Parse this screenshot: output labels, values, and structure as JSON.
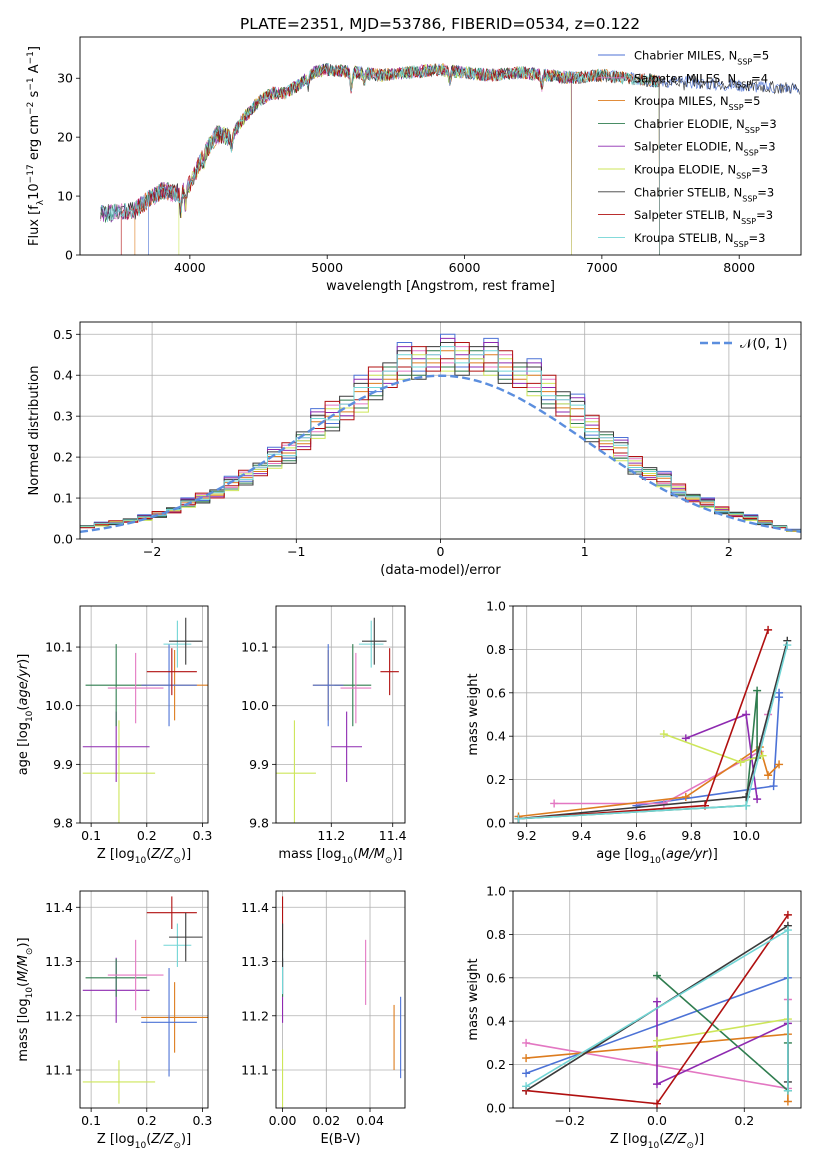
{
  "figure_title": "PLATE=2351, MJD=53786, FIBERID=0534, z=0.122",
  "colors": {
    "Chabrier MILES": "#4c72d6",
    "Salpeter MILES": "#e377c2",
    "Kroupa MILES": "#dd7c1e",
    "Chabrier ELODIE": "#2f7d4f",
    "Salpeter ELODIE": "#8e2ab0",
    "Kroupa ELODIE": "#cde65a",
    "Chabrier STELIB": "#3a3a3a",
    "Salpeter STELIB": "#b01010",
    "Kroupa STELIB": "#72d5d5",
    "gaussian": "#5b8ede"
  },
  "chart_data": [
    {
      "id": "spectrum",
      "type": "line",
      "xlabel": "wavelength [Angstrom, rest frame]",
      "ylabel": "Flux [f_λ 10^-17 erg cm^-2 s^-1 A^-1]",
      "xlim": [
        3200,
        8450
      ],
      "ylim": [
        0,
        37
      ],
      "xticks": [
        4000,
        5000,
        6000,
        7000,
        8000
      ],
      "yticks": [
        0,
        10,
        20,
        30
      ],
      "grid": false,
      "legend_position": "top-right",
      "legend": [
        {
          "label": "Chabrier MILES, N_SSP=5",
          "main": "Chabrier MILES, N",
          "sub": "SSP",
          "tail": "=5"
        },
        {
          "label": "Salpeter MILES, N_SSP=4",
          "main": "Salpeter MILES, N",
          "sub": "SSP",
          "tail": "=4"
        },
        {
          "label": "Kroupa MILES, N_SSP=5",
          "main": "Kroupa MILES, N",
          "sub": "SSP",
          "tail": "=5"
        },
        {
          "label": "Chabrier ELODIE, N_SSP=3",
          "main": "Chabrier ELODIE, N",
          "sub": "SSP",
          "tail": "=3"
        },
        {
          "label": "Salpeter ELODIE, N_SSP=3",
          "main": "Salpeter ELODIE, N",
          "sub": "SSP",
          "tail": "=3"
        },
        {
          "label": "Kroupa ELODIE, N_SSP=3",
          "main": "Kroupa ELODIE, N",
          "sub": "SSP",
          "tail": "=3"
        },
        {
          "label": "Chabrier STELIB, N_SSP=3",
          "main": "Chabrier STELIB, N",
          "sub": "SSP",
          "tail": "=3"
        },
        {
          "label": "Salpeter STELIB, N_SSP=3",
          "main": "Salpeter STELIB, N",
          "sub": "SSP",
          "tail": "=3"
        },
        {
          "label": "Kroupa STELIB, N_SSP=3",
          "main": "Kroupa STELIB, N",
          "sub": "SSP",
          "tail": "=3"
        }
      ],
      "continuum": {
        "x": [
          3350,
          3600,
          3700,
          3800,
          3900,
          4000,
          4100,
          4200,
          4300,
          4400,
          4500,
          4600,
          4700,
          4800,
          4900,
          5000,
          5200,
          5400,
          5600,
          5800,
          6000,
          6200,
          6400,
          6600,
          6800,
          7000,
          7200,
          7400,
          7600,
          7800,
          8000,
          8200,
          8440
        ],
        "y": [
          7.0,
          7.5,
          9.5,
          11.0,
          10.5,
          12.0,
          17.0,
          20.5,
          20.0,
          23.5,
          26.0,
          27.5,
          27.5,
          29.0,
          31.0,
          31.5,
          31.0,
          30.5,
          31.0,
          31.5,
          31.0,
          30.5,
          31.0,
          30.5,
          30.0,
          30.5,
          30.0,
          29.5,
          29.5,
          29.0,
          28.8,
          28.5,
          28.3
        ]
      },
      "series": [
        {
          "name": "Chabrier MILES",
          "range": [
            3700,
            8440
          ]
        },
        {
          "name": "Salpeter MILES",
          "range": [
            3350,
            6780
          ]
        },
        {
          "name": "Kroupa MILES",
          "range": [
            3600,
            7420
          ]
        },
        {
          "name": "Chabrier ELODIE",
          "range": [
            3350,
            7420
          ]
        },
        {
          "name": "Salpeter ELODIE",
          "range": [
            3350,
            6780
          ]
        },
        {
          "name": "Kroupa ELODIE",
          "range": [
            3920,
            6780
          ]
        },
        {
          "name": "Chabrier STELIB",
          "range": [
            3350,
            8440
          ]
        },
        {
          "name": "Salpeter STELIB",
          "range": [
            3500,
            7420
          ]
        },
        {
          "name": "Kroupa STELIB",
          "range": [
            3350,
            7420
          ]
        }
      ]
    },
    {
      "id": "residuals",
      "type": "histogram",
      "xlabel": "(data-model)/error",
      "ylabel": "Normed distribution",
      "xlim": [
        -2.5,
        2.5
      ],
      "ylim": [
        0,
        0.53
      ],
      "xticks": [
        -2,
        -1,
        0,
        1,
        2
      ],
      "yticks": [
        0.0,
        0.1,
        0.2,
        0.3,
        0.4,
        0.5
      ],
      "grid": true,
      "legend_position": "top-right",
      "legend": [
        {
          "label": "𝒩(0, 1)"
        }
      ],
      "bin_width": 0.1,
      "bin_start": -2.5,
      "base": [
        0.03,
        0.035,
        0.04,
        0.045,
        0.05,
        0.06,
        0.07,
        0.085,
        0.1,
        0.11,
        0.13,
        0.15,
        0.17,
        0.19,
        0.21,
        0.24,
        0.27,
        0.3,
        0.32,
        0.34,
        0.38,
        0.4,
        0.42,
        0.43,
        0.44,
        0.44,
        0.44,
        0.44,
        0.43,
        0.42,
        0.4,
        0.38,
        0.36,
        0.33,
        0.3,
        0.27,
        0.24,
        0.21,
        0.18,
        0.16,
        0.14,
        0.12,
        0.1,
        0.085,
        0.07,
        0.06,
        0.05,
        0.04,
        0.03,
        0.02
      ],
      "series_offsets": {
        "Chabrier MILES": [
          0.0,
          0.06,
          -0.02
        ],
        "Salpeter MILES": [
          0.01,
          -0.01,
          0.03
        ],
        "Kroupa MILES": [
          -0.01,
          0.02,
          0.0
        ],
        "Chabrier ELODIE": [
          0.02,
          -0.02,
          -0.03
        ],
        "Salpeter ELODIE": [
          -0.02,
          0.05,
          0.01
        ],
        "Kroupa ELODIE": [
          0.0,
          -0.03,
          0.02
        ],
        "Chabrier STELIB": [
          0.03,
          0.04,
          -0.04
        ],
        "Salpeter STELIB": [
          -0.03,
          0.0,
          0.04
        ],
        "Kroupa STELIB": [
          0.01,
          0.03,
          -0.01
        ]
      },
      "gaussian": {
        "mu": 0,
        "sigma": 1
      }
    },
    {
      "id": "age_vs_Z",
      "type": "errorbar",
      "xlabel": "Z [log10(Z/Z⊙)]",
      "ylabel": "age [log10(age/yr)]",
      "xlim": [
        0.08,
        0.31
      ],
      "ylim": [
        9.8,
        10.17
      ],
      "xticks": [
        0.1,
        0.2,
        0.3
      ],
      "yticks": [
        9.8,
        9.9,
        10.0,
        10.1
      ],
      "grid": true,
      "points": [
        {
          "series": "Kroupa ELODIE",
          "x": 0.15,
          "y": 9.885,
          "xerr": 0.065,
          "yerr": 0.09
        },
        {
          "series": "Salpeter ELODIE",
          "x": 0.145,
          "y": 9.93,
          "xerr": 0.06,
          "yerr": 0.06
        },
        {
          "series": "Chabrier ELODIE",
          "x": 0.145,
          "y": 10.035,
          "xerr": 0.055,
          "yerr": 0.07
        },
        {
          "series": "Salpeter MILES",
          "x": 0.18,
          "y": 10.03,
          "xerr": 0.05,
          "yerr": 0.06
        },
        {
          "series": "Kroupa MILES",
          "x": 0.25,
          "y": 10.035,
          "xerr": 0.06,
          "yerr": 0.06
        },
        {
          "series": "Chabrier MILES",
          "x": 0.24,
          "y": 10.035,
          "xerr": 0.05,
          "yerr": 0.07
        },
        {
          "series": "Salpeter STELIB",
          "x": 0.245,
          "y": 10.058,
          "xerr": 0.045,
          "yerr": 0.04
        },
        {
          "series": "Kroupa STELIB",
          "x": 0.255,
          "y": 10.105,
          "xerr": 0.025,
          "yerr": 0.04
        },
        {
          "series": "Chabrier STELIB",
          "x": 0.27,
          "y": 10.11,
          "xerr": 0.03,
          "yerr": 0.04
        }
      ]
    },
    {
      "id": "age_vs_mass",
      "type": "errorbar",
      "xlabel": "mass [log10(M/M⊙)]",
      "ylabel": "",
      "xlim": [
        11.02,
        11.44
      ],
      "ylim": [
        9.8,
        10.17
      ],
      "xticks": [
        11.2,
        11.4
      ],
      "yticks": [
        9.8,
        9.9,
        10.0,
        10.1
      ],
      "grid": true,
      "points": [
        {
          "series": "Kroupa ELODIE",
          "x": 11.08,
          "y": 9.885,
          "xerr": 0.07,
          "yerr": 0.09
        },
        {
          "series": "Salpeter ELODIE",
          "x": 11.25,
          "y": 9.93,
          "xerr": 0.05,
          "yerr": 0.06
        },
        {
          "series": "Chabrier ELODIE",
          "x": 11.27,
          "y": 10.035,
          "xerr": 0.06,
          "yerr": 0.07
        },
        {
          "series": "Salpeter MILES",
          "x": 11.28,
          "y": 10.03,
          "xerr": 0.05,
          "yerr": 0.06
        },
        {
          "series": "Kroupa MILES",
          "x": 11.19,
          "y": 10.035,
          "xerr": 0.05,
          "yerr": 0.06
        },
        {
          "series": "Chabrier MILES",
          "x": 11.19,
          "y": 10.035,
          "xerr": 0.05,
          "yerr": 0.07
        },
        {
          "series": "Salpeter STELIB",
          "x": 11.39,
          "y": 10.058,
          "xerr": 0.03,
          "yerr": 0.04
        },
        {
          "series": "Kroupa STELIB",
          "x": 11.33,
          "y": 10.105,
          "xerr": 0.04,
          "yerr": 0.04
        },
        {
          "series": "Chabrier STELIB",
          "x": 11.34,
          "y": 10.11,
          "xerr": 0.04,
          "yerr": 0.04
        }
      ]
    },
    {
      "id": "mass_weight_vs_age",
      "type": "line",
      "xlabel": "age [log10(age/yr)]",
      "ylabel": "mass weight",
      "xlim": [
        9.15,
        10.2
      ],
      "ylim": [
        0.0,
        1.0
      ],
      "xticks": [
        9.2,
        9.4,
        9.6,
        9.8,
        10.0
      ],
      "yticks": [
        0.0,
        0.2,
        0.4,
        0.6,
        0.8,
        1.0
      ],
      "grid": true,
      "series": [
        {
          "name": "Chabrier MILES",
          "x": [
            9.6,
            10.1,
            10.12,
            10.12
          ],
          "y": [
            0.08,
            0.17,
            0.58,
            0.6
          ]
        },
        {
          "name": "Salpeter MILES",
          "x": [
            9.3,
            9.7,
            10.05,
            10.08
          ],
          "y": [
            0.09,
            0.09,
            0.33,
            0.5
          ]
        },
        {
          "name": "Kroupa MILES",
          "x": [
            9.17,
            9.78,
            10.05,
            10.08,
            10.12
          ],
          "y": [
            0.03,
            0.12,
            0.35,
            0.22,
            0.27
          ]
        },
        {
          "name": "Chabrier ELODIE",
          "x": [
            9.17,
            10.0,
            10.04,
            10.04
          ],
          "y": [
            0.02,
            0.08,
            0.61,
            0.3
          ]
        },
        {
          "name": "Salpeter ELODIE",
          "x": [
            9.78,
            10.0,
            10.04
          ],
          "y": [
            0.39,
            0.5,
            0.11
          ]
        },
        {
          "name": "Kroupa ELODIE",
          "x": [
            9.7,
            9.98,
            10.06
          ],
          "y": [
            0.41,
            0.28,
            0.31
          ]
        },
        {
          "name": "Chabrier STELIB",
          "x": [
            9.17,
            10.0,
            10.15
          ],
          "y": [
            0.02,
            0.12,
            0.84
          ]
        },
        {
          "name": "Salpeter STELIB",
          "x": [
            9.17,
            9.85,
            10.08
          ],
          "y": [
            0.02,
            0.08,
            0.89
          ]
        },
        {
          "name": "Kroupa STELIB",
          "x": [
            9.17,
            10.0,
            10.15
          ],
          "y": [
            0.02,
            0.08,
            0.82
          ]
        }
      ]
    },
    {
      "id": "mass_vs_Z",
      "type": "errorbar",
      "xlabel": "Z [log10(Z/Z⊙)]",
      "ylabel": "mass [log10(M/M⊙)]",
      "xlim": [
        0.08,
        0.31
      ],
      "ylim": [
        11.03,
        11.43
      ],
      "xticks": [
        0.1,
        0.2,
        0.3
      ],
      "yticks": [
        11.1,
        11.2,
        11.3,
        11.4
      ],
      "grid": true,
      "points": [
        {
          "series": "Kroupa ELODIE",
          "x": 0.15,
          "y": 11.078,
          "xerr": 0.065,
          "yerr": 0.04
        },
        {
          "series": "Salpeter ELODIE",
          "x": 0.145,
          "y": 11.247,
          "xerr": 0.06,
          "yerr": 0.06
        },
        {
          "series": "Chabrier ELODIE",
          "x": 0.145,
          "y": 11.27,
          "xerr": 0.055,
          "yerr": 0.035
        },
        {
          "series": "Salpeter MILES",
          "x": 0.18,
          "y": 11.275,
          "xerr": 0.05,
          "yerr": 0.065
        },
        {
          "series": "Kroupa MILES",
          "x": 0.25,
          "y": 11.197,
          "xerr": 0.06,
          "yerr": 0.065
        },
        {
          "series": "Chabrier MILES",
          "x": 0.24,
          "y": 11.188,
          "xerr": 0.05,
          "yerr": 0.1
        },
        {
          "series": "Salpeter STELIB",
          "x": 0.245,
          "y": 11.39,
          "xerr": 0.045,
          "yerr": 0.03
        },
        {
          "series": "Kroupa STELIB",
          "x": 0.255,
          "y": 11.33,
          "xerr": 0.025,
          "yerr": 0.04
        },
        {
          "series": "Chabrier STELIB",
          "x": 0.27,
          "y": 11.345,
          "xerr": 0.03,
          "yerr": 0.045
        }
      ]
    },
    {
      "id": "mass_vs_EBV",
      "type": "errorbar",
      "xlabel": "E(B-V)",
      "ylabel": "",
      "xlim": [
        -0.003,
        0.056
      ],
      "ylim": [
        11.03,
        11.43
      ],
      "xticks": [
        0.0,
        0.02,
        0.04
      ],
      "yticks": [
        11.1,
        11.2,
        11.3,
        11.4
      ],
      "grid": true,
      "points": [
        {
          "series": "Kroupa ELODIE",
          "x": 0.0,
          "y": 11.078,
          "xerr": 0.0,
          "yerr": 0.06
        },
        {
          "series": "Salpeter ELODIE",
          "x": 0.0,
          "y": 11.247,
          "xerr": 0.0,
          "yerr": 0.06
        },
        {
          "series": "Chabrier ELODIE",
          "x": 0.0,
          "y": 11.27,
          "xerr": 0.0,
          "yerr": 0.035
        },
        {
          "series": "Salpeter MILES",
          "x": 0.038,
          "y": 11.28,
          "xerr": 0.0,
          "yerr": 0.06
        },
        {
          "series": "Kroupa MILES",
          "x": 0.051,
          "y": 11.16,
          "xerr": 0.0,
          "yerr": 0.06
        },
        {
          "series": "Chabrier MILES",
          "x": 0.054,
          "y": 11.16,
          "xerr": 0.0,
          "yerr": 0.075
        },
        {
          "series": "Salpeter STELIB",
          "x": 0.0,
          "y": 11.37,
          "xerr": 0.0,
          "yerr": 0.05
        },
        {
          "series": "Kroupa STELIB",
          "x": 0.0,
          "y": 11.3,
          "xerr": 0.0,
          "yerr": 0.06
        },
        {
          "series": "Chabrier STELIB",
          "x": 0.0,
          "y": 11.33,
          "xerr": 0.0,
          "yerr": 0.04
        }
      ]
    },
    {
      "id": "mass_weight_vs_Z",
      "type": "line",
      "xlabel": "Z [log10(Z/Z⊙)]",
      "ylabel": "mass weight",
      "xlim": [
        -0.33,
        0.33
      ],
      "ylim": [
        0.0,
        1.0
      ],
      "xticks": [
        -0.2,
        0.0,
        0.2
      ],
      "yticks": [
        0.0,
        0.2,
        0.4,
        0.6,
        0.8,
        1.0
      ],
      "grid": true,
      "series": [
        {
          "name": "Chabrier MILES",
          "x": [
            -0.3,
            0.3
          ],
          "y": [
            0.16,
            0.6
          ]
        },
        {
          "name": "Salpeter MILES",
          "x": [
            -0.3,
            0.3,
            0.3
          ],
          "y": [
            0.3,
            0.09,
            0.5
          ]
        },
        {
          "name": "Kroupa MILES",
          "x": [
            -0.3,
            0.3,
            0.3
          ],
          "y": [
            0.23,
            0.34,
            0.03
          ]
        },
        {
          "name": "Chabrier ELODIE",
          "x": [
            0.0,
            0.3,
            0.3
          ],
          "y": [
            0.61,
            0.08,
            0.3
          ]
        },
        {
          "name": "Salpeter ELODIE",
          "x": [
            0.0,
            0.0,
            0.3
          ],
          "y": [
            0.49,
            0.11,
            0.39
          ]
        },
        {
          "name": "Kroupa ELODIE",
          "x": [
            0.0,
            0.0,
            0.3
          ],
          "y": [
            0.28,
            0.31,
            0.41
          ]
        },
        {
          "name": "Chabrier STELIB",
          "x": [
            -0.3,
            0.3,
            0.3
          ],
          "y": [
            0.08,
            0.84,
            0.12
          ]
        },
        {
          "name": "Salpeter STELIB",
          "x": [
            -0.3,
            0.0,
            0.3
          ],
          "y": [
            0.08,
            0.02,
            0.89
          ]
        },
        {
          "name": "Kroupa STELIB",
          "x": [
            -0.3,
            0.3,
            0.3
          ],
          "y": [
            0.1,
            0.82,
            0.08
          ]
        }
      ]
    }
  ]
}
